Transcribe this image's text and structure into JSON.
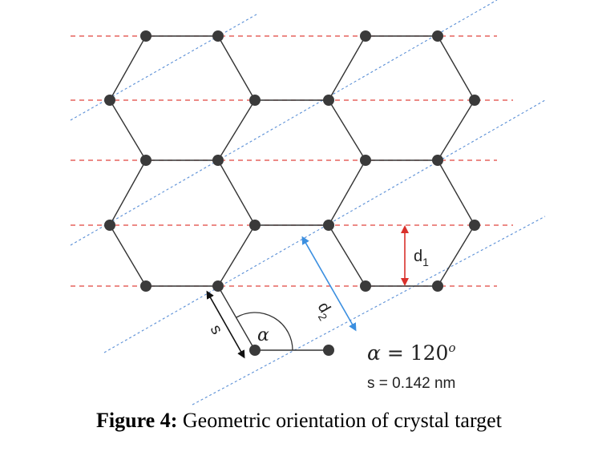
{
  "diagram": {
    "labels": {
      "s": "s",
      "alpha": "α",
      "d1": "d",
      "d1_sub": "1",
      "d2": "d",
      "d2_sub": "2"
    },
    "annotations": {
      "angle_alpha": "α",
      "angle_eq": " = 120",
      "angle_sup": "o",
      "bond_length": "s = 0.142 nm"
    },
    "colors": {
      "bond": "#333333",
      "atom": "#3a3a3a",
      "horizontal_planes": "#e0443e",
      "diagonal_planes": "#5a8fd6",
      "d1_arrow": "#d9302b",
      "d2_arrow": "#3b8fe0",
      "s_arrow": "#111111"
    }
  },
  "caption": {
    "label": "Figure 4:",
    "text": " Geometric orientation of crystal target"
  }
}
